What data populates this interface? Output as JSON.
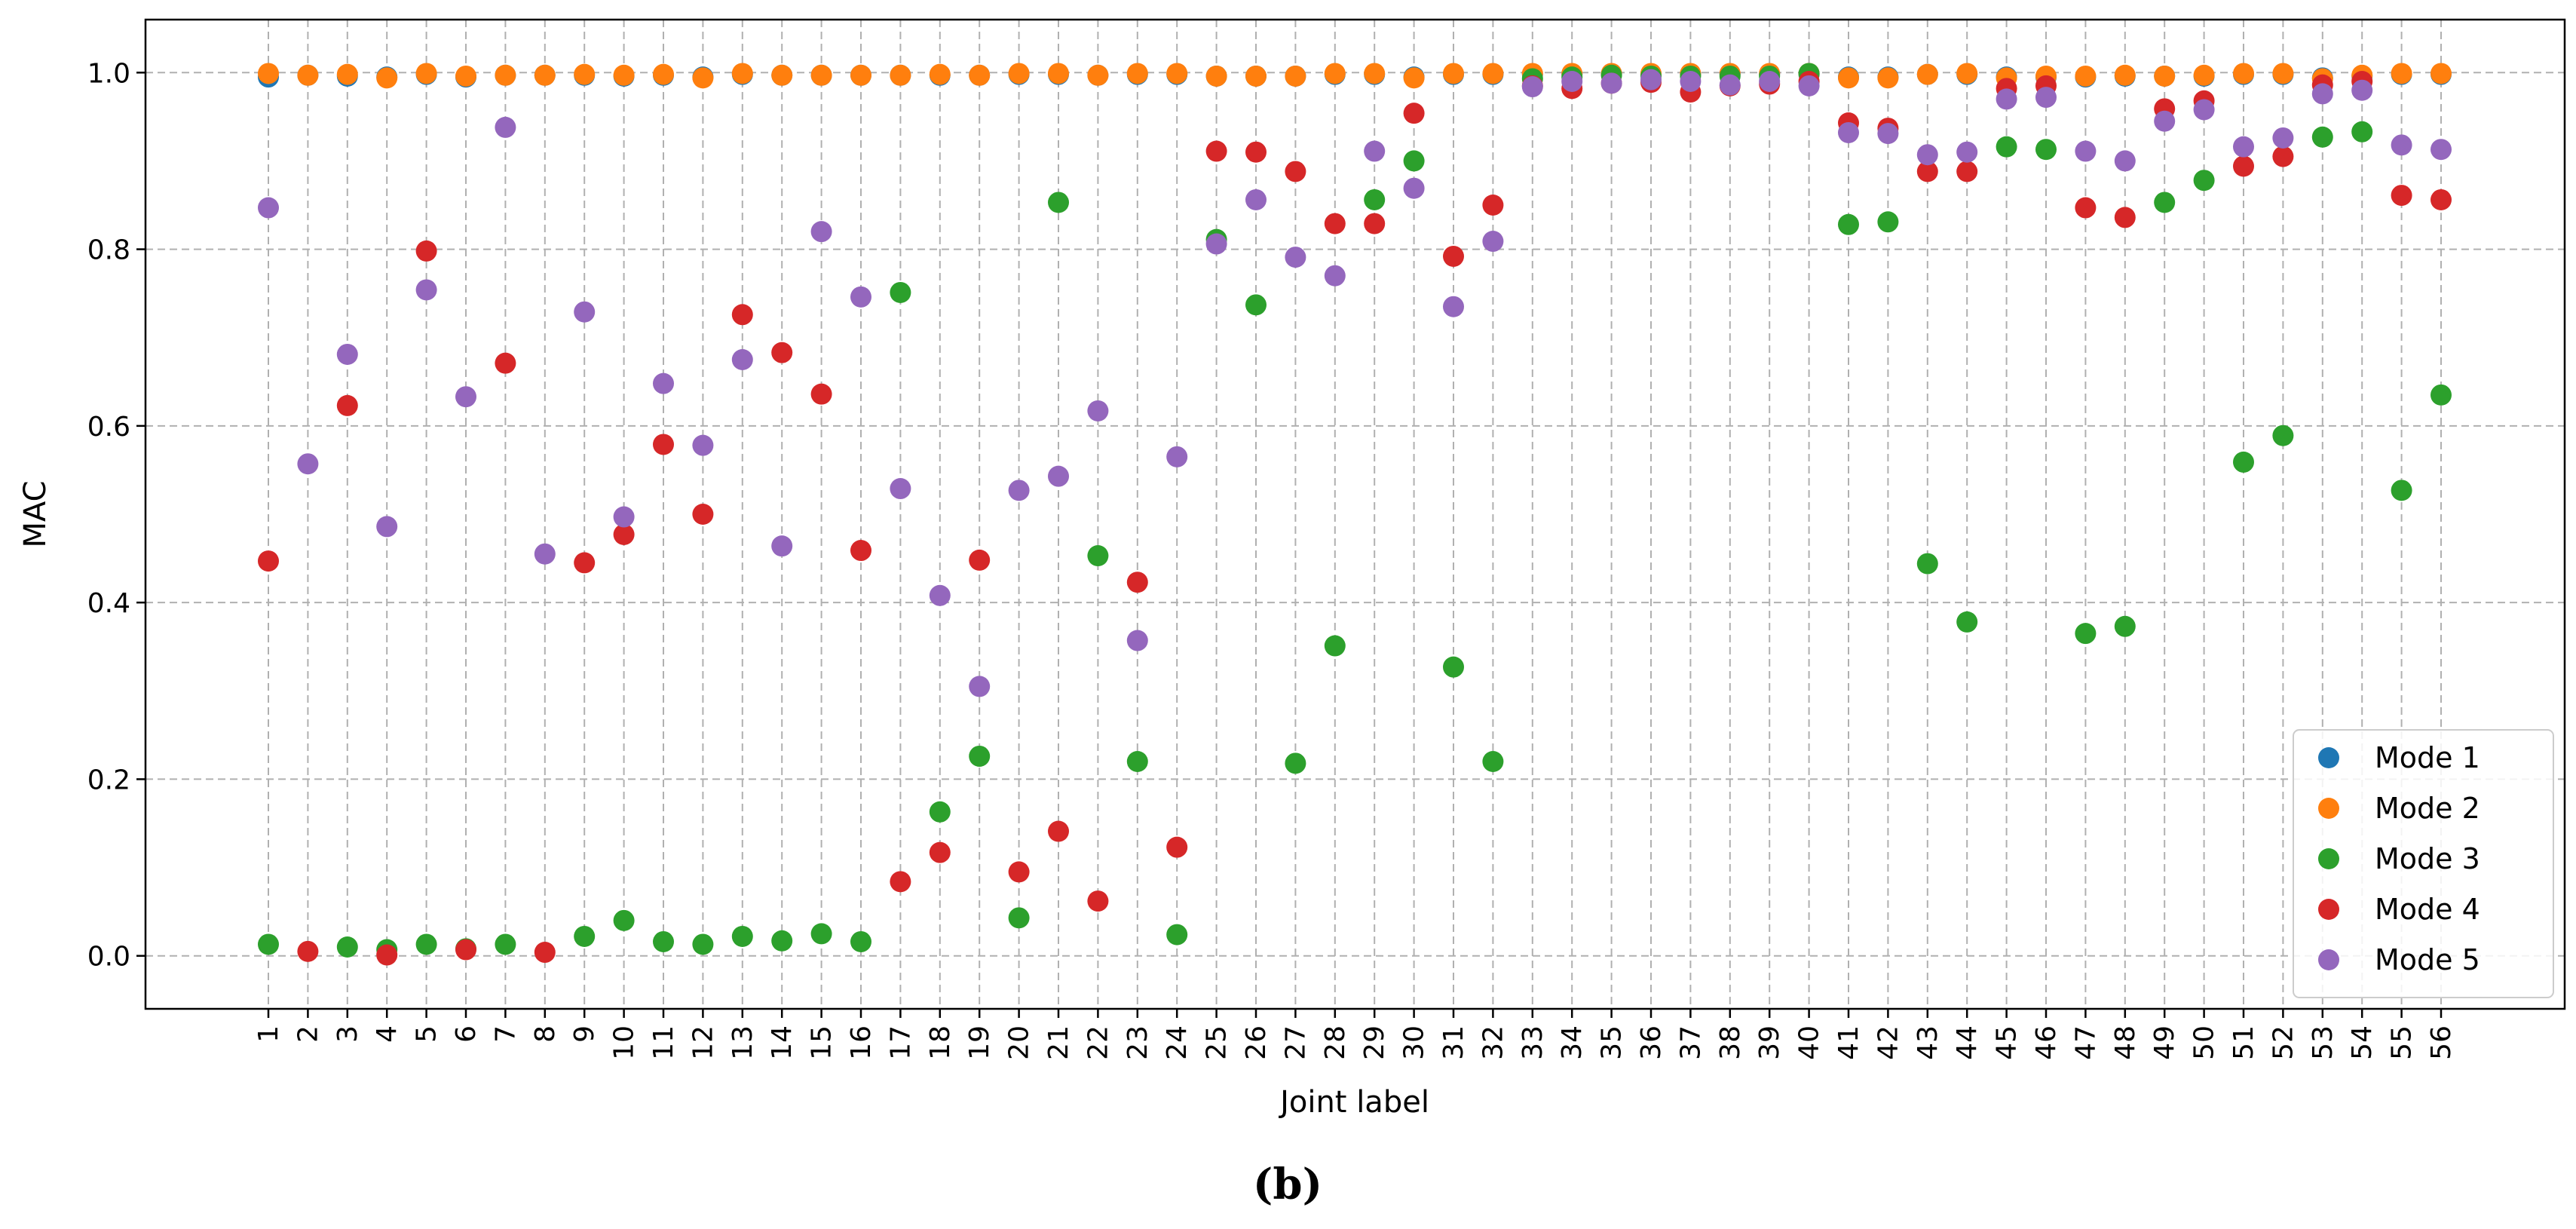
{
  "chart_data": {
    "type": "scatter",
    "title": "",
    "xlabel": "Joint label",
    "ylabel": "MAC",
    "ylim": [
      -0.06,
      1.06
    ],
    "yticks": [
      0.0,
      0.2,
      0.4,
      0.6,
      0.8,
      1.0
    ],
    "ytick_labels": [
      "0.0",
      "0.2",
      "0.4",
      "0.6",
      "0.8",
      "1.0"
    ],
    "x": [
      1,
      2,
      3,
      4,
      5,
      6,
      7,
      8,
      9,
      10,
      11,
      12,
      13,
      14,
      15,
      16,
      17,
      18,
      19,
      20,
      21,
      22,
      23,
      24,
      25,
      26,
      27,
      28,
      29,
      30,
      31,
      32,
      33,
      34,
      35,
      36,
      37,
      38,
      39,
      40,
      41,
      42,
      43,
      44,
      45,
      46,
      47,
      48,
      49,
      50,
      51,
      52,
      53,
      54,
      55,
      56
    ],
    "xtick_labels": [
      "1",
      "2",
      "3",
      "4",
      "5",
      "6",
      "7",
      "8",
      "9",
      "10",
      "11",
      "12",
      "13",
      "14",
      "15",
      "16",
      "17",
      "18",
      "19",
      "20",
      "21",
      "22",
      "23",
      "24",
      "25",
      "26",
      "27",
      "28",
      "29",
      "30",
      "31",
      "32",
      "33",
      "34",
      "35",
      "36",
      "37",
      "38",
      "39",
      "40",
      "41",
      "42",
      "43",
      "44",
      "45",
      "46",
      "47",
      "48",
      "49",
      "50",
      "51",
      "52",
      "53",
      "54",
      "55",
      "56"
    ],
    "grid": true,
    "legend_position": "bottom-right",
    "caption": "(b)",
    "series": [
      {
        "name": "Mode 1",
        "color": "#1f77b4",
        "values": [
          0.995,
          0.997,
          0.996,
          0.995,
          0.998,
          0.995,
          0.997,
          0.997,
          0.997,
          0.996,
          0.997,
          0.995,
          0.998,
          0.997,
          0.997,
          0.997,
          0.997,
          0.997,
          0.997,
          0.998,
          0.998,
          0.997,
          0.998,
          0.998,
          0.996,
          0.996,
          0.996,
          0.998,
          0.998,
          0.995,
          0.998,
          0.998,
          0.998,
          0.998,
          0.998,
          0.998,
          0.998,
          0.998,
          0.998,
          0.998,
          0.995,
          0.995,
          0.998,
          0.998,
          0.995,
          0.995,
          0.995,
          0.996,
          0.996,
          0.996,
          0.998,
          0.998,
          0.994,
          0.996,
          0.998,
          0.998
        ]
      },
      {
        "name": "Mode 2",
        "color": "#ff7f0e",
        "values": [
          0.999,
          0.997,
          0.998,
          0.994,
          0.999,
          0.996,
          0.997,
          0.997,
          0.998,
          0.997,
          0.998,
          0.994,
          0.999,
          0.997,
          0.997,
          0.997,
          0.997,
          0.998,
          0.997,
          0.999,
          0.999,
          0.997,
          0.999,
          0.999,
          0.996,
          0.996,
          0.996,
          0.999,
          0.999,
          0.994,
          0.999,
          0.999,
          0.999,
          0.999,
          0.999,
          0.999,
          0.999,
          0.999,
          0.999,
          0.999,
          0.994,
          0.994,
          0.998,
          0.999,
          0.994,
          0.996,
          0.996,
          0.997,
          0.996,
          0.997,
          0.999,
          0.999,
          0.993,
          0.997,
          0.999,
          0.999
        ]
      },
      {
        "name": "Mode 3",
        "color": "#2ca02c",
        "values": [
          0.013,
          null,
          0.01,
          0.007,
          0.013,
          0.008,
          0.013,
          null,
          0.022,
          0.04,
          0.016,
          0.013,
          0.022,
          0.017,
          0.025,
          0.016,
          0.751,
          0.163,
          0.226,
          0.043,
          0.853,
          0.453,
          0.22,
          0.024,
          0.811,
          0.737,
          0.218,
          0.351,
          0.856,
          0.9,
          0.327,
          0.22,
          0.993,
          0.995,
          0.997,
          0.996,
          0.996,
          0.996,
          0.996,
          0.999,
          0.828,
          0.831,
          0.444,
          0.378,
          0.916,
          0.913,
          0.365,
          0.373,
          0.853,
          0.878,
          0.559,
          0.589,
          0.927,
          0.933,
          0.527,
          0.635
        ]
      },
      {
        "name": "Mode 4",
        "color": "#d62728",
        "values": [
          0.447,
          0.005,
          0.623,
          0.001,
          0.798,
          0.007,
          0.671,
          0.004,
          0.445,
          0.477,
          0.579,
          0.5,
          0.726,
          0.683,
          0.636,
          0.459,
          0.084,
          0.117,
          0.448,
          0.095,
          0.141,
          0.062,
          0.423,
          0.123,
          0.911,
          0.91,
          0.888,
          0.829,
          0.829,
          0.954,
          0.792,
          0.85,
          0.985,
          0.982,
          0.988,
          0.989,
          0.978,
          0.985,
          0.987,
          0.99,
          0.943,
          0.937,
          0.888,
          0.888,
          0.982,
          0.985,
          0.847,
          0.836,
          0.959,
          0.968,
          0.894,
          0.905,
          0.986,
          0.99,
          0.861,
          0.856
        ]
      },
      {
        "name": "Mode 5",
        "color": "#9467bd",
        "values": [
          0.847,
          0.557,
          0.681,
          0.486,
          0.754,
          0.633,
          0.938,
          0.455,
          0.729,
          0.497,
          0.648,
          0.578,
          0.675,
          0.464,
          0.82,
          0.746,
          0.529,
          0.408,
          0.305,
          0.527,
          0.543,
          0.617,
          0.357,
          0.565,
          0.806,
          0.856,
          0.791,
          0.77,
          0.911,
          0.869,
          0.735,
          0.809,
          0.984,
          0.99,
          0.988,
          0.992,
          0.99,
          0.986,
          0.99,
          0.985,
          0.932,
          0.931,
          0.907,
          0.91,
          0.97,
          0.972,
          0.911,
          0.9,
          0.945,
          0.958,
          0.916,
          0.926,
          0.976,
          0.98,
          0.918,
          0.913
        ]
      }
    ]
  }
}
